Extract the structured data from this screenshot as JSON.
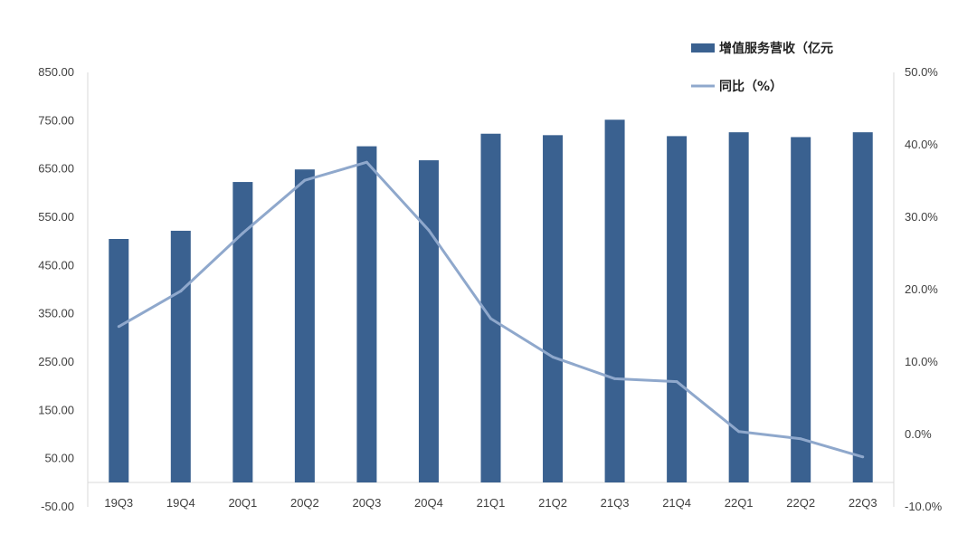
{
  "chart_data": {
    "type": "bar",
    "categories": [
      "19Q3",
      "19Q4",
      "20Q1",
      "20Q2",
      "20Q3",
      "20Q4",
      "21Q1",
      "21Q2",
      "21Q3",
      "21Q4",
      "22Q1",
      "22Q2",
      "22Q3"
    ],
    "series": [
      {
        "name": "增值服务营收（亿元",
        "type": "bar",
        "axis": "left",
        "color": "#3a6190",
        "values": [
          505,
          522,
          623,
          649,
          697,
          668,
          723,
          720,
          752,
          718,
          726,
          716,
          726
        ]
      },
      {
        "name": "同比（%）",
        "type": "line",
        "axis": "right",
        "color": "#8fa8cc",
        "values": [
          14.9,
          19.8,
          27.8,
          35.1,
          37.6,
          28.2,
          16.0,
          10.7,
          7.7,
          7.3,
          0.4,
          -0.6,
          -3.1
        ]
      }
    ],
    "y_left": {
      "ylim": [
        -50,
        850
      ],
      "ticks": [
        "-50.00",
        "50.00",
        "150.00",
        "250.00",
        "350.00",
        "450.00",
        "550.00",
        "650.00",
        "750.00",
        "850.00"
      ]
    },
    "y_right": {
      "ylim": [
        -10,
        50
      ],
      "ticks": [
        "-10.0%",
        "0.0%",
        "10.0%",
        "20.0%",
        "30.0%",
        "40.0%",
        "50.0%"
      ]
    },
    "grid": false,
    "legend_position": "top-right"
  }
}
